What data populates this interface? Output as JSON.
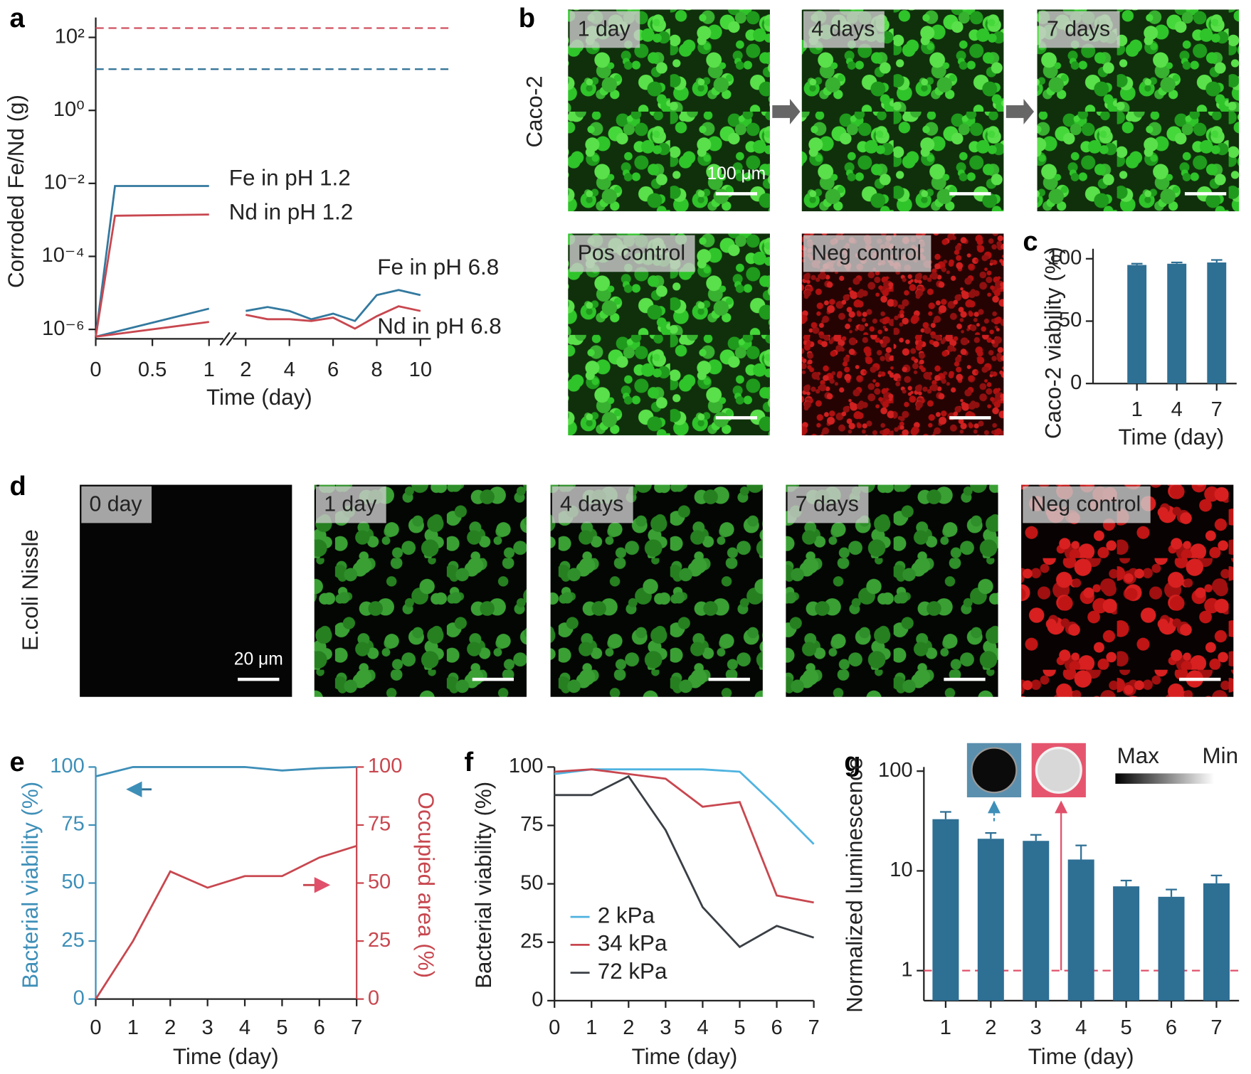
{
  "chart_data": [
    {
      "type": "line",
      "panel": "a",
      "xlabel": "Time (day)",
      "ylabel": "Corroded Fe/Nd (g)",
      "log_y": true,
      "ylim": [
        5.5e-07,
        350
      ],
      "yticks": [
        {
          "value": 1e-06,
          "label": "10⁻⁶"
        },
        {
          "value": 0.0001,
          "label": "10⁻⁴"
        },
        {
          "value": 0.01,
          "label": "10⁻²"
        },
        {
          "value": 1,
          "label": "10⁰"
        },
        {
          "value": 100,
          "label": "10²"
        }
      ],
      "x_segments": [
        {
          "xlim": [
            0,
            1
          ],
          "xticks": [
            0,
            0.5,
            1
          ]
        },
        {
          "xlim": [
            2,
            10
          ],
          "xticks": [
            2,
            4,
            6,
            8,
            10
          ]
        }
      ],
      "reference_lines": [
        {
          "value": 180,
          "color": "#d0505f"
        },
        {
          "value": 13.5,
          "color": "#2e6f94"
        }
      ],
      "series": [
        {
          "name": "Fe in pH 1.2",
          "color": "#33799f",
          "x": [
            0,
            0.17,
            1
          ],
          "values": [
            6.3e-07,
            0.0085,
            0.0085
          ]
        },
        {
          "name": "Nd in pH 1.2",
          "color": "#c8474f",
          "x": [
            0,
            0.17,
            1
          ],
          "values": [
            6.3e-07,
            0.0013,
            0.0014
          ]
        },
        {
          "name": "Fe in pH 6.8",
          "color": "#33799f",
          "x": [
            0,
            1,
            2,
            3,
            4,
            5,
            6,
            7,
            8,
            9,
            10
          ],
          "values": [
            6.3e-07,
            3.7e-06,
            3.2e-06,
            4.1e-06,
            3.2e-06,
            1.9e-06,
            2.7e-06,
            1.7e-06,
            8.7e-06,
            1.2e-05,
            8.7e-06
          ]
        },
        {
          "name": "Nd in pH 6.8",
          "color": "#c8474f",
          "x": [
            0,
            1,
            2,
            3,
            4,
            5,
            6,
            7,
            8,
            9,
            10
          ],
          "values": [
            6.3e-07,
            1.6e-06,
            2.5e-06,
            1.9e-06,
            1.9e-06,
            1.7e-06,
            2.1e-06,
            1.05e-06,
            2.3e-06,
            4.3e-06,
            3.2e-06
          ]
        }
      ]
    },
    {
      "type": "bar",
      "panel": "c",
      "xlabel": "Time (day)",
      "ylabel": "Caco-2 viability (%)",
      "color": "#2e6f94",
      "categories": [
        "1",
        "4",
        "7"
      ],
      "values": [
        95,
        96,
        97
      ],
      "errors": [
        1,
        1,
        2
      ],
      "ylim": [
        0,
        108
      ],
      "yticks": [
        0,
        50,
        100
      ]
    },
    {
      "type": "line",
      "panel": "e",
      "xlabel": "Time (day)",
      "ylabel": "Bacterial viability (%)",
      "y2label": "Occupied area (%)",
      "x": [
        0,
        1,
        2,
        3,
        4,
        5,
        6,
        7
      ],
      "xlim": [
        0,
        7
      ],
      "xticks": [
        0,
        1,
        2,
        3,
        4,
        5,
        6,
        7
      ],
      "ylim": [
        0,
        100
      ],
      "yticks": [
        0,
        25,
        50,
        75,
        100
      ],
      "y2lim": [
        0,
        100
      ],
      "y2ticks": [
        0,
        25,
        50,
        75,
        100
      ],
      "series": [
        {
          "color": "#3e8fb8",
          "values": [
            96,
            100,
            100,
            100,
            100,
            98.5,
            99.5,
            100
          ]
        },
        {
          "color": "#c8474f",
          "axis": "y2",
          "values": [
            0,
            25,
            55,
            48,
            53,
            53,
            61,
            66
          ]
        }
      ]
    },
    {
      "type": "line",
      "panel": "f",
      "xlabel": "Time (day)",
      "ylabel": "Bacterial viability (%)",
      "x": [
        0,
        1,
        2,
        3,
        4,
        5,
        6,
        7
      ],
      "xlim": [
        0,
        7
      ],
      "xticks": [
        0,
        1,
        2,
        3,
        4,
        5,
        6,
        7
      ],
      "ylim": [
        0,
        100
      ],
      "yticks": [
        0,
        25,
        50,
        75,
        100
      ],
      "series": [
        {
          "name": "2 kPa",
          "color": "#4fb3e0",
          "values": [
            97,
            99,
            99,
            99,
            99,
            98,
            83,
            67
          ]
        },
        {
          "name": "34 kPa",
          "color": "#c8474f",
          "values": [
            98,
            99,
            97,
            95,
            83,
            85,
            45,
            42
          ]
        },
        {
          "name": "72 kPa",
          "color": "#3a3f45",
          "values": [
            88,
            88,
            96,
            73,
            40,
            23,
            32,
            27
          ]
        }
      ]
    },
    {
      "type": "bar",
      "panel": "g",
      "xlabel": "Time (day)",
      "ylabel": "Normalized luminescence",
      "color": "#2e6f94",
      "log_y": true,
      "categories": [
        "1",
        "2",
        "3",
        "4",
        "5",
        "6",
        "7"
      ],
      "values": [
        33,
        21,
        20,
        13,
        7,
        5.5,
        7.5
      ],
      "errors": [
        6,
        3,
        3,
        5,
        1,
        1,
        1.5
      ],
      "ylim": [
        0.5,
        110
      ],
      "yticks": [
        1,
        10,
        100
      ],
      "reference_lines": [
        {
          "value": 1,
          "color": "#e0506a"
        }
      ],
      "gradient_legend": [
        "Max",
        "Min"
      ]
    }
  ],
  "micrographs": [
    {
      "panel": "b",
      "row_label": "Caco-2",
      "scale_bar": "100 μm",
      "images": [
        {
          "label": "1 day",
          "color": "green"
        },
        {
          "label": "4 days",
          "color": "green"
        },
        {
          "label": "7 days",
          "color": "green"
        },
        {
          "label": "Pos control",
          "color": "green"
        },
        {
          "label": "Neg control",
          "color": "red"
        }
      ]
    },
    {
      "panel": "d",
      "row_label": "E.coli Nissle",
      "scale_bar": "20 μm",
      "images": [
        {
          "label": "0 day",
          "color": "black"
        },
        {
          "label": "1 day",
          "color": "green"
        },
        {
          "label": "4 days",
          "color": "green"
        },
        {
          "label": "7 days",
          "color": "green"
        },
        {
          "label": "Neg control",
          "color": "red"
        }
      ]
    }
  ]
}
